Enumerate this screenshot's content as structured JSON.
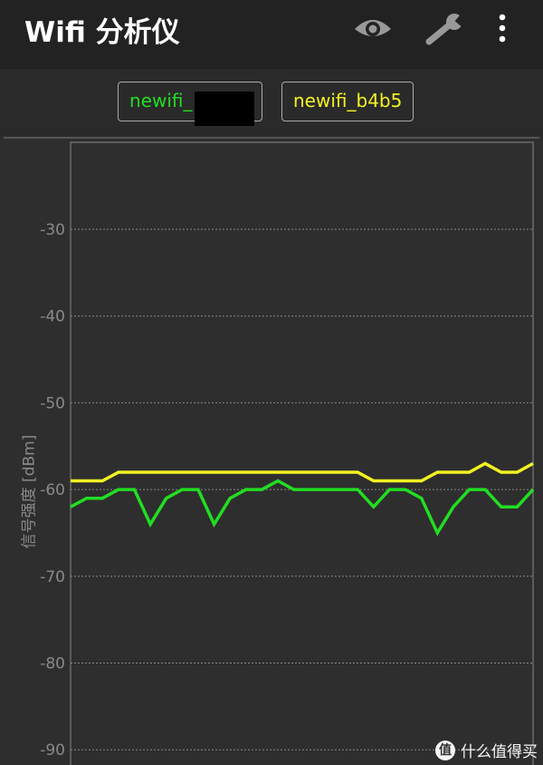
{
  "appbar": {
    "title": "Wifi 分析仪",
    "icons": [
      "eye-icon",
      "wrench-icon",
      "more-vert-icon"
    ]
  },
  "legend": [
    {
      "label": "newifi_",
      "color": "#22dd22",
      "redacted": true
    },
    {
      "label": "newifi_b4b5",
      "color": "#f2f222"
    }
  ],
  "chart_data": {
    "type": "line",
    "ylabel": "信号强度 [dBm]",
    "ylim": [
      -92,
      -20
    ],
    "yticks": [
      -30,
      -40,
      -50,
      -60,
      -70,
      -80,
      -90
    ],
    "grid": true,
    "series": [
      {
        "name": "newifi_",
        "color": "#22dd22",
        "values": [
          -62,
          -61,
          -61,
          -60,
          -60,
          -64,
          -61,
          -60,
          -60,
          -64,
          -61,
          -60,
          -60,
          -59,
          -60,
          -60,
          -60,
          -60,
          -60,
          -62,
          -60,
          -60,
          -61,
          -65,
          -62,
          -60,
          -60,
          -62,
          -62,
          -60
        ]
      },
      {
        "name": "newifi_b4b5",
        "color": "#f2f222",
        "values": [
          -59,
          -59,
          -59,
          -58,
          -58,
          -58,
          -58,
          -58,
          -58,
          -58,
          -58,
          -58,
          -58,
          -58,
          -58,
          -58,
          -58,
          -58,
          -58,
          -59,
          -59,
          -59,
          -59,
          -58,
          -58,
          -58,
          -57,
          -58,
          -58,
          -57
        ]
      }
    ]
  },
  "watermark": {
    "text": "什么值得买",
    "logo": "值"
  }
}
